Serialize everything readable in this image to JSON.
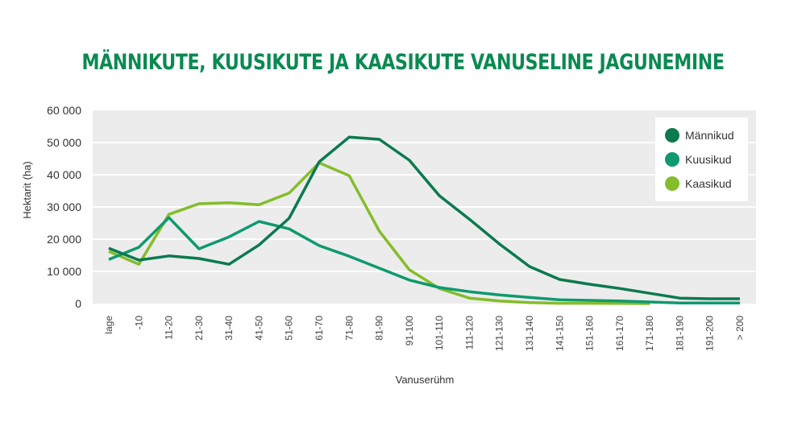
{
  "chart_data": {
    "type": "line",
    "title": "MÄNNIKUTE, KUUSIKUTE JA KAASIKUTE VANUSELINE JAGUNEMINE",
    "xlabel": "Vanuserühm",
    "ylabel": "Hektarit (ha)",
    "ylim": [
      0,
      60000
    ],
    "yticks": [
      0,
      10000,
      20000,
      30000,
      40000,
      50000,
      60000
    ],
    "ytick_labels": [
      "0",
      "10 000",
      "20 000",
      "30 000",
      "40 000",
      "50 000",
      "60 000"
    ],
    "grid": true,
    "legend_position": "top-right",
    "categories": [
      "lage",
      "-10",
      "11-20",
      "21-30",
      "31-40",
      "41-50",
      "51-60",
      "61-70",
      "71-80",
      "81-90",
      "91-100",
      "101-110",
      "111-120",
      "121-130",
      "131-140",
      "141-150",
      "151-160",
      "161-170",
      "171-180",
      "181-190",
      "191-200",
      "> 200"
    ],
    "series": [
      {
        "name": "Männikud",
        "color": "#0b7a4e",
        "values": [
          17200,
          13500,
          14800,
          14000,
          12200,
          18200,
          26500,
          44000,
          51700,
          51000,
          44500,
          33500,
          26200,
          18500,
          11500,
          7500,
          6000,
          4700,
          3200,
          1700,
          1500,
          1500
        ]
      },
      {
        "name": "Kuusikud",
        "color": "#0e9a6e",
        "values": [
          13700,
          17500,
          26700,
          17000,
          20700,
          25500,
          23200,
          18000,
          14700,
          11000,
          7300,
          5000,
          3700,
          2700,
          1900,
          1200,
          1000,
          800,
          500,
          200,
          200,
          200
        ]
      },
      {
        "name": "Kaasikud",
        "color": "#84bd2a",
        "values": [
          16200,
          12200,
          27700,
          31000,
          31300,
          30700,
          34300,
          43700,
          39700,
          22500,
          10500,
          4700,
          1700,
          800,
          300,
          100,
          100,
          50,
          0,
          null,
          null,
          null
        ]
      }
    ]
  }
}
